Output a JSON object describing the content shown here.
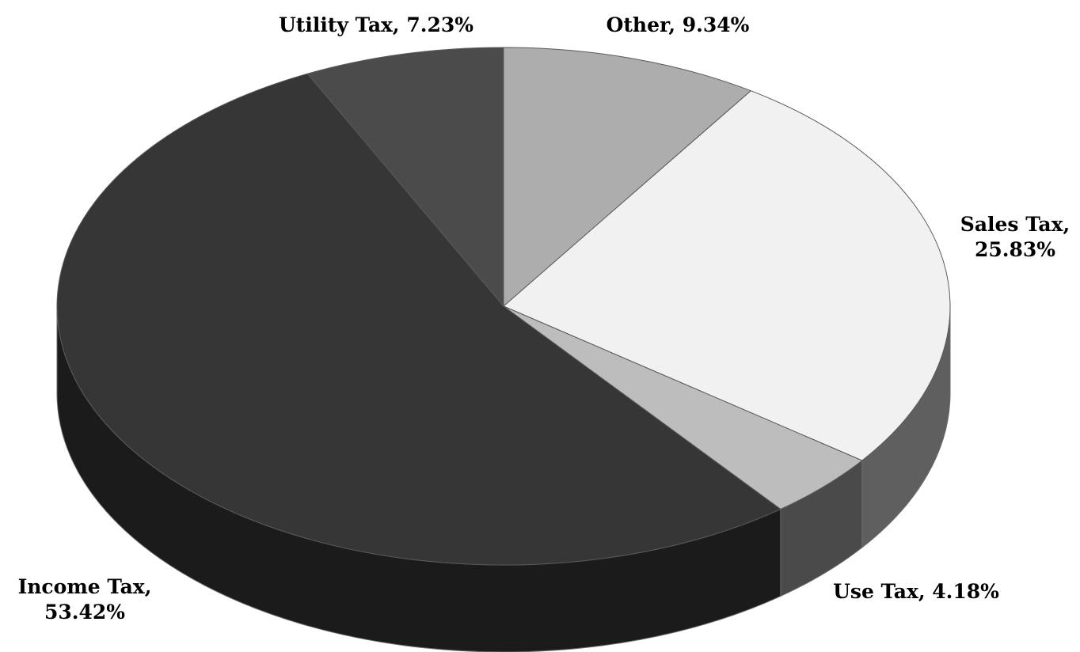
{
  "chart_data": {
    "type": "pie",
    "title": "",
    "subtitle": "",
    "legend": "none",
    "style": "3d-tilted",
    "slices": [
      {
        "label": "Other",
        "value": 9.34,
        "color": "#adadad",
        "side_color": "#7c7c7c"
      },
      {
        "label": "Sales Tax",
        "value": 25.83,
        "color": "#f1f1f1",
        "side_color": "#5f5f5f"
      },
      {
        "label": "Use Tax",
        "value": 4.18,
        "color": "#bdbdbd",
        "side_color": "#4a4a4a"
      },
      {
        "label": "Income Tax",
        "value": 53.42,
        "color": "#363636",
        "side_color": "#1b1b1b"
      },
      {
        "label": "Utility Tax",
        "value": 7.23,
        "color": "#4b4b4b",
        "side_color": "#2a2a2a"
      }
    ],
    "data_labels": [
      {
        "lines": [
          "Other, 9.34%"
        ]
      },
      {
        "lines": [
          "Sales Tax,",
          "25.83%"
        ]
      },
      {
        "lines": [
          "Use Tax, 4.18%"
        ]
      },
      {
        "lines": [
          "Income Tax,",
          "53.42%"
        ]
      },
      {
        "lines": [
          "Utility Tax, 7.23%"
        ]
      }
    ]
  }
}
